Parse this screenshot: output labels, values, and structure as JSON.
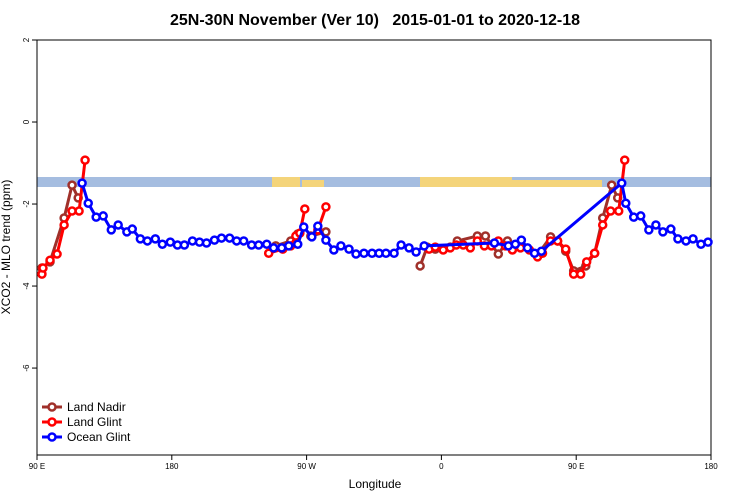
{
  "chart_data": {
    "type": "line",
    "title": "25N-30N November (Ver 10)   2015-01-01 to 2020-12-18",
    "x_label": "Longitude",
    "y_label": "XCO2 - MLO trend (ppm)",
    "xlim": [
      90,
      540
    ],
    "ylim": [
      -8.12,
      2
    ],
    "xticks": [
      {
        "value": 90,
        "label": "90 E"
      },
      180,
      {
        "value": 270,
        "label": "90 W"
      },
      0,
      {
        "value": 450,
        "label": "90 E"
      },
      180
    ],
    "xtick_values": [
      90,
      180,
      270,
      360,
      450,
      540
    ],
    "yticks": [
      2,
      0,
      -2,
      -4,
      -6
    ],
    "legend": "bottom-left",
    "series": [
      {
        "name": "Land Nadir",
        "color": "#a0302a",
        "x": [
          93.3,
          98.7,
          108.1,
          113.4,
          117.5,
          null,
          249.4,
          259.4,
          264.1,
          null,
          272.8,
          282.9,
          null,
          345.8,
          350.5,
          355.9,
          365.9,
          370.6,
          384,
          389.4,
          398,
          404.1,
          412.8,
          424.2,
          432.9,
          437.6,
          443,
          448.3,
          456.4,
          462.3,
          467.7,
          473.7,
          477.7
        ],
        "values": [
          -3.56,
          -3.41,
          -2.34,
          -1.54,
          -1.85,
          null,
          -3.02,
          -2.9,
          -2.73,
          null,
          -2.78,
          -2.68,
          null,
          -3.51,
          -3.05,
          -3.1,
          -3.05,
          -2.9,
          -2.78,
          -2.78,
          -3.22,
          -2.9,
          -3.02,
          -3.24,
          -2.8,
          -2.9,
          -3.15,
          -3.63,
          -3.51,
          -3.2,
          -2.34,
          -1.54,
          -1.85
        ]
      },
      {
        "name": "Land Glint",
        "color": "#ff0000",
        "x": [
          93.3,
          94,
          98.7,
          103.4,
          108.1,
          113.4,
          118.1,
          122.1,
          null,
          244.7,
          254.1,
          259.4,
          262.8,
          265.5,
          268.8,
          null,
          277.5,
          282.9,
          null,
          351.8,
          355.9,
          361.2,
          365.9,
          369.9,
          374.6,
          379.3,
          384,
          388.7,
          393.4,
          398,
          402.7,
          407.4,
          412.8,
          418.8,
          424.2,
          427.5,
          432.9,
          437.6,
          443,
          448.3,
          453,
          457,
          462.3,
          467.7,
          473,
          478.4,
          482.4
        ],
        "values": [
          -3.71,
          -3.56,
          -3.37,
          -3.22,
          -2.51,
          -2.17,
          -2.17,
          -0.93,
          null,
          -3.2,
          -3.1,
          -3.02,
          -2.78,
          -2.71,
          -2.12,
          null,
          -2.63,
          -2.07,
          null,
          -3.1,
          -3.05,
          -3.12,
          -3.07,
          -3.0,
          -3.0,
          -3.07,
          -2.9,
          -3.02,
          -3.02,
          -2.9,
          -3.02,
          -3.12,
          -3.07,
          -3.12,
          -3.29,
          -3.2,
          -2.9,
          -2.9,
          -3.1,
          -3.71,
          -3.71,
          -3.41,
          -3.2,
          -2.51,
          -2.17,
          -2.17,
          -0.93
        ]
      },
      {
        "name": "Ocean Glint",
        "color": "#0000ff",
        "x": [
          120.1,
          124.2,
          129.5,
          134.2,
          139.6,
          144.2,
          150,
          153.6,
          159,
          163.7,
          169,
          173.7,
          179,
          183.8,
          188.4,
          193.8,
          198.5,
          203.2,
          208.5,
          213.2,
          218.6,
          223.3,
          228,
          233.3,
          238,
          243.4,
          248,
          253.4,
          258.1,
          264.1,
          268.1,
          273.5,
          277.5,
          282.9,
          288.2,
          292.9,
          298.3,
          303,
          308.3,
          313.7,
          318.4,
          323,
          328.4,
          333.1,
          338.4,
          343.1,
          348.5,
          395.4,
          404.7,
          409.4,
          413.4,
          417.5,
          422.2,
          426.8,
          480.4,
          483.1,
          488.4,
          493.1,
          498.5,
          503.2,
          507.9,
          513.2,
          517.9,
          523.3,
          528,
          533.3,
          538
        ],
        "values": [
          -1.49,
          -1.98,
          -2.32,
          -2.29,
          -2.63,
          -2.51,
          -2.68,
          -2.61,
          -2.85,
          -2.9,
          -2.85,
          -2.98,
          -2.93,
          -3.0,
          -3.0,
          -2.9,
          -2.93,
          -2.95,
          -2.88,
          -2.83,
          -2.83,
          -2.9,
          -2.9,
          -3.0,
          -3.0,
          -2.98,
          -3.07,
          -3.07,
          -3.02,
          -2.98,
          -2.56,
          -2.8,
          -2.54,
          -2.88,
          -3.12,
          -3.02,
          -3.1,
          -3.22,
          -3.2,
          -3.2,
          -3.2,
          -3.2,
          -3.2,
          -3.0,
          -3.07,
          -3.17,
          -3.02,
          -2.95,
          -3.02,
          -2.98,
          -2.88,
          -3.07,
          -3.2,
          -3.15,
          -1.49,
          -1.98,
          -2.32,
          -2.29,
          -2.63,
          -2.51,
          -2.68,
          -2.61,
          -2.85,
          -2.9,
          -2.85,
          -2.98,
          -2.93
        ]
      }
    ]
  }
}
